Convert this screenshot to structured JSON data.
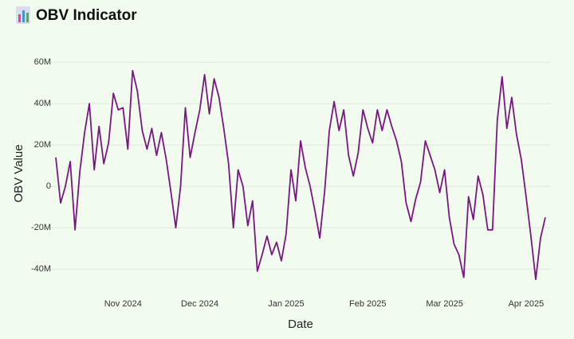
{
  "chart_data": {
    "type": "line",
    "title": "OBV Indicator",
    "x_label": "Date",
    "y_label": "OBV Value",
    "categories": [
      null,
      null,
      null,
      null,
      null,
      null,
      null,
      null,
      null,
      null,
      null,
      null,
      null,
      null,
      "Nov 2024",
      null,
      null,
      null,
      null,
      null,
      null,
      null,
      null,
      null,
      null,
      null,
      null,
      null,
      null,
      null,
      "Dec 2024",
      null,
      null,
      null,
      null,
      null,
      null,
      null,
      null,
      null,
      null,
      null,
      null,
      null,
      null,
      null,
      null,
      null,
      "Jan 2025",
      null,
      null,
      null,
      null,
      null,
      null,
      null,
      null,
      null,
      null,
      null,
      null,
      null,
      null,
      null,
      null,
      "Feb 2025",
      null,
      null,
      null,
      null,
      null,
      null,
      null,
      null,
      null,
      null,
      null,
      null,
      null,
      null,
      null,
      "Mar 2025",
      null,
      null,
      null,
      null,
      null,
      null,
      null,
      null,
      null,
      null,
      null,
      null,
      null,
      null,
      null,
      null,
      "Apr 2025",
      null,
      null,
      null,
      null
    ],
    "values": [
      14000000,
      -8000000,
      0,
      12000000,
      -21000000,
      7000000,
      26000000,
      40000000,
      8000000,
      29000000,
      11000000,
      21000000,
      45000000,
      37000000,
      38000000,
      18000000,
      56000000,
      46000000,
      27000000,
      18000000,
      28000000,
      15000000,
      26000000,
      13000000,
      -3000000,
      -20000000,
      0,
      38000000,
      14000000,
      26000000,
      37000000,
      54000000,
      35000000,
      52000000,
      43000000,
      28000000,
      11000000,
      -20000000,
      8000000,
      0,
      -19000000,
      -7000000,
      -41000000,
      -33000000,
      -24000000,
      -33000000,
      -27000000,
      -36000000,
      -23000000,
      8000000,
      -7000000,
      22000000,
      9000000,
      0,
      -12000000,
      -25000000,
      -3000000,
      27000000,
      41000000,
      27000000,
      37000000,
      15000000,
      5000000,
      16000000,
      37000000,
      28000000,
      21000000,
      37000000,
      27000000,
      37000000,
      29000000,
      22000000,
      12000000,
      -8000000,
      -17000000,
      -6000000,
      2000000,
      22000000,
      15000000,
      8000000,
      -3000000,
      8000000,
      -15000000,
      -28000000,
      -33000000,
      -44000000,
      -5000000,
      -16000000,
      5000000,
      -4000000,
      -21000000,
      -21000000,
      32000000,
      53000000,
      28000000,
      43000000,
      25000000,
      13000000,
      -5000000,
      -24000000,
      -45000000,
      -25000000,
      -15000000
    ],
    "color": "#7b1585",
    "ylim": [
      -53000000,
      67000000
    ],
    "yticks": [
      {
        "value": -40000000,
        "label": "-40M"
      },
      {
        "value": -20000000,
        "label": "-20M"
      },
      0,
      {
        "value": 20000000,
        "label": "20M"
      },
      {
        "value": 40000000,
        "label": "40M"
      },
      {
        "value": 60000000,
        "label": "60M"
      }
    ],
    "grid": true
  }
}
